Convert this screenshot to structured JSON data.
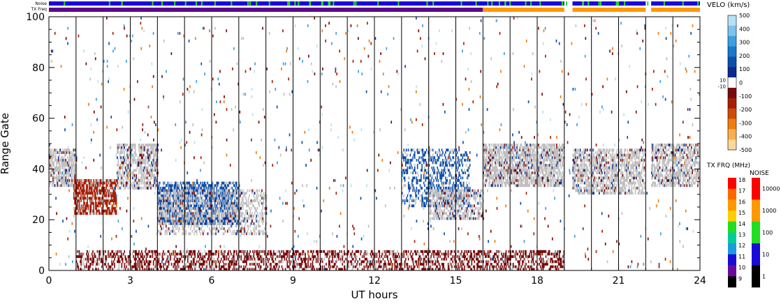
{
  "chart_data": {
    "type": "heatmap",
    "xlabel": "UT hours",
    "ylabel": "Range Gate",
    "xlim": [
      0,
      24
    ],
    "ylim": [
      0,
      100
    ],
    "x_ticks": [
      0,
      3,
      6,
      9,
      12,
      15,
      18,
      21,
      24
    ],
    "y_ticks": [
      0,
      20,
      40,
      60,
      80,
      100
    ],
    "noise_label": "Noise",
    "txfreq_label": "TX Freq",
    "noise_strip_color": "#1a0ad8",
    "noise_spike_color": "#22dd22",
    "txfreq_segments": [
      {
        "start": 0.0,
        "end": 16.0,
        "color": "#5a0a8c"
      },
      {
        "start": 16.0,
        "end": 19.0,
        "color": "#ff9900"
      },
      {
        "start": 19.3,
        "end": 22.0,
        "color": "#ff9900"
      },
      {
        "start": 22.2,
        "end": 24.0,
        "color": "#ff9900"
      }
    ],
    "noise_segments": [
      {
        "start": 0.0,
        "end": 19.0
      },
      {
        "start": 19.3,
        "end": 22.0
      },
      {
        "start": 22.2,
        "end": 24.0
      }
    ],
    "velocity_scale": {
      "title": "VELO (km/s)",
      "range": [
        -500,
        500
      ],
      "ticks": [
        "500",
        "400",
        "300",
        "200",
        "100",
        "0",
        "-100",
        "-200",
        "-300",
        "-400",
        "-500"
      ],
      "near_zero_labels": [
        "10",
        "-10"
      ],
      "colors": [
        "#b4e1f5",
        "#7cc3ee",
        "#3aa0e2",
        "#1a78cf",
        "#0d4fae",
        "#0a2a8c",
        "#ffffff",
        "#7a0a0a",
        "#a81e05",
        "#d14a05",
        "#f07d0a",
        "#fbae4a",
        "#fcd79a"
      ]
    },
    "txfreq_scale": {
      "title": "TX FRQ (MHz)",
      "ticks": [
        "18",
        "17",
        "16",
        "15",
        "14",
        "13",
        "12",
        "11",
        "10",
        "9"
      ],
      "colors": [
        "#ff0000",
        "#ff6600",
        "#ff9900",
        "#ffcc00",
        "#22dd22",
        "#00cc99",
        "#1a9be0",
        "#1a0ad8",
        "#6a0a9c",
        "#000000"
      ]
    },
    "noise_scale": {
      "title": "NOISE",
      "ticks": [
        "10000",
        "1000",
        "100",
        "10",
        "1"
      ],
      "colors": [
        "#ff0000",
        "#ff9900",
        "#22dd22",
        "#1a0ad8",
        "#000000"
      ]
    },
    "scatter_regions": [
      {
        "x": [
          0.0,
          1.0
        ],
        "y": [
          33,
          48
        ],
        "velocity": "ground",
        "density": 0.7
      },
      {
        "x": [
          0.9,
          2.5
        ],
        "y": [
          22,
          36
        ],
        "velocity": -150,
        "density": 0.7
      },
      {
        "x": [
          2.5,
          4.0
        ],
        "y": [
          32,
          50
        ],
        "velocity": "ground",
        "density": 0.6
      },
      {
        "x": [
          4.0,
          7.0
        ],
        "y": [
          18,
          35
        ],
        "velocity": 150,
        "density": 0.65
      },
      {
        "x": [
          4.0,
          8.0
        ],
        "y": [
          14,
          32
        ],
        "velocity": "ground",
        "density": 0.4
      },
      {
        "x": [
          13.0,
          15.5
        ],
        "y": [
          25,
          48
        ],
        "velocity": 150,
        "density": 0.35
      },
      {
        "x": [
          14.0,
          16.0
        ],
        "y": [
          20,
          32
        ],
        "velocity": "ground",
        "density": 0.55
      },
      {
        "x": [
          16.0,
          19.0
        ],
        "y": [
          33,
          50
        ],
        "velocity": "ground",
        "density": 0.7
      },
      {
        "x": [
          19.3,
          22.0
        ],
        "y": [
          30,
          48
        ],
        "velocity": "ground",
        "density": 0.6
      },
      {
        "x": [
          22.2,
          24.0
        ],
        "y": [
          33,
          50
        ],
        "velocity": "ground",
        "density": 0.6
      },
      {
        "x": [
          1.0,
          19.0
        ],
        "y": [
          0,
          8
        ],
        "velocity": -100,
        "density": 0.45
      }
    ]
  }
}
